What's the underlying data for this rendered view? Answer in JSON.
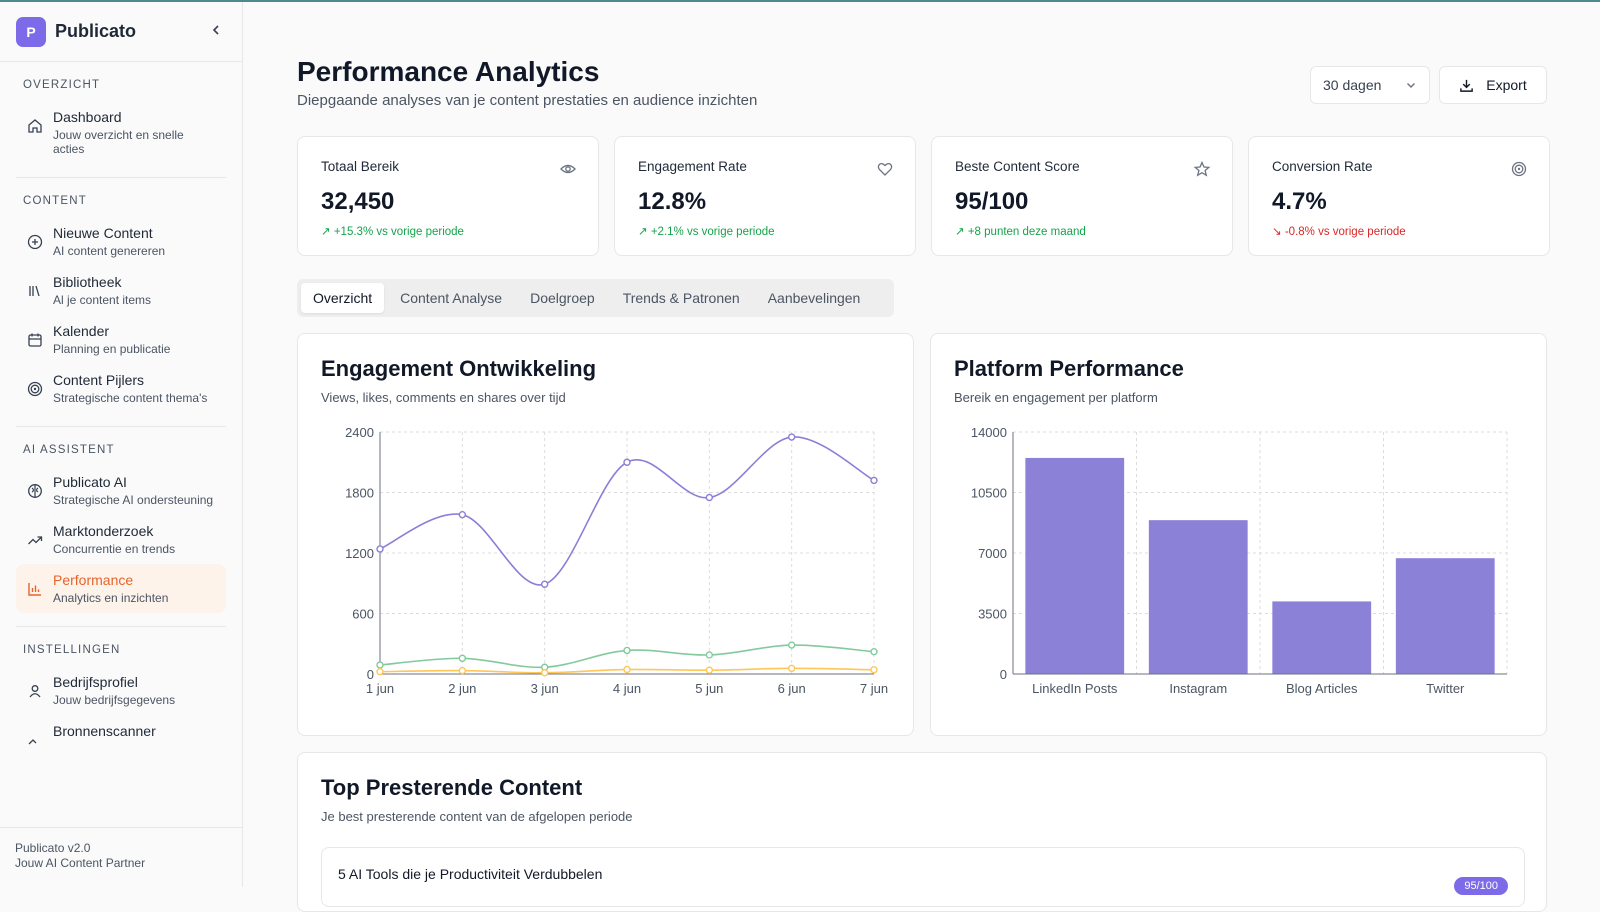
{
  "sidebar": {
    "brand": {
      "logo_letter": "P",
      "name": "Publicato"
    },
    "sections": [
      {
        "title": "OVERZICHT",
        "items": [
          {
            "label": "Dashboard",
            "sub": "Jouw overzicht en snelle acties",
            "icon": "home-icon"
          }
        ]
      },
      {
        "title": "CONTENT",
        "items": [
          {
            "label": "Nieuwe Content",
            "sub": "AI content genereren",
            "icon": "plus-circle-icon"
          },
          {
            "label": "Bibliotheek",
            "sub": "Al je content items",
            "icon": "library-icon"
          },
          {
            "label": "Kalender",
            "sub": "Planning en publicatie",
            "icon": "calendar-icon"
          },
          {
            "label": "Content Pijlers",
            "sub": "Strategische content thema's",
            "icon": "target-icon"
          }
        ]
      },
      {
        "title": "AI ASSISTENT",
        "items": [
          {
            "label": "Publicato AI",
            "sub": "Strategische AI ondersteuning",
            "icon": "brain-icon"
          },
          {
            "label": "Marktonderzoek",
            "sub": "Concurrentie en trends",
            "icon": "trend-icon"
          },
          {
            "label": "Performance",
            "sub": "Analytics en inzichten",
            "icon": "bar-chart-icon",
            "active": true
          }
        ]
      },
      {
        "title": "INSTELLINGEN",
        "items": [
          {
            "label": "Bedrijfsprofiel",
            "sub": "Jouw bedrijfsgegevens",
            "icon": "user-icon"
          },
          {
            "label": "Bronnenscanner",
            "sub": "",
            "icon": "scan-icon"
          }
        ]
      }
    ],
    "footer": {
      "version": "Publicato v2.0",
      "tagline": "Jouw AI Content Partner"
    }
  },
  "header": {
    "title": "Performance Analytics",
    "subtitle": "Diepgaande analyses van je content prestaties en audience inzichten",
    "period_select": "30 dagen",
    "export_label": "Export"
  },
  "kpis": [
    {
      "label": "Totaal Bereik",
      "value": "32,450",
      "change": "+15.3% vs vorige periode",
      "trend": "up",
      "icon": "eye-icon"
    },
    {
      "label": "Engagement Rate",
      "value": "12.8%",
      "change": "+2.1% vs vorige periode",
      "trend": "up",
      "icon": "heart-icon"
    },
    {
      "label": "Beste Content Score",
      "value": "95/100",
      "change": "+8 punten deze maand",
      "trend": "up",
      "icon": "star-icon"
    },
    {
      "label": "Conversion Rate",
      "value": "4.7%",
      "change": "-0.8% vs vorige periode",
      "trend": "down",
      "icon": "target-icon"
    }
  ],
  "tabs": [
    "Overzicht",
    "Content Analyse",
    "Doelgroep",
    "Trends & Patronen",
    "Aanbevelingen"
  ],
  "active_tab": 0,
  "engagement_card": {
    "title": "Engagement Ontwikkeling",
    "subtitle": "Views, likes, comments en shares over tijd"
  },
  "platform_card": {
    "title": "Platform Performance",
    "subtitle": "Bereik en engagement per platform"
  },
  "top_content": {
    "title": "Top Presterende Content",
    "subtitle": "Je best presterende content van de afgelopen periode",
    "items": [
      {
        "title": "5 AI Tools die je Productiviteit Verdubbelen",
        "score": "95/100"
      }
    ]
  },
  "colors": {
    "accent": "#7c6be8",
    "active_nav": "#e5642b",
    "views": "#8b7fd6",
    "likes": "#82ca9d",
    "comments": "#ffc658",
    "bars": "#8b82d8"
  },
  "chart_data": [
    {
      "type": "line",
      "x": [
        "1 jun",
        "2 jun",
        "3 jun",
        "4 jun",
        "5 jun",
        "6 jun",
        "7 jun"
      ],
      "ylim": [
        0,
        2400
      ],
      "yticks": [
        0,
        600,
        1200,
        1800,
        2400
      ],
      "grid": true,
      "series": [
        {
          "values": [
            1240,
            1580,
            890,
            2100,
            1750,
            2350,
            1920
          ],
          "color": "#8b7fd6"
        },
        {
          "values": [
            89,
            156,
            67,
            234,
            189,
            287,
            221
          ],
          "color": "#82ca9d"
        },
        {
          "values": [
            23,
            34,
            12,
            45,
            38,
            56,
            42
          ],
          "color": "#ffc658"
        }
      ]
    },
    {
      "type": "bar",
      "categories": [
        "LinkedIn Posts",
        "Instagram",
        "Blog Articles",
        "Twitter"
      ],
      "values": [
        12500,
        8900,
        4200,
        6700
      ],
      "ylim": [
        0,
        14000
      ],
      "yticks": [
        0,
        3500,
        7000,
        10500,
        14000
      ],
      "grid": true
    }
  ]
}
